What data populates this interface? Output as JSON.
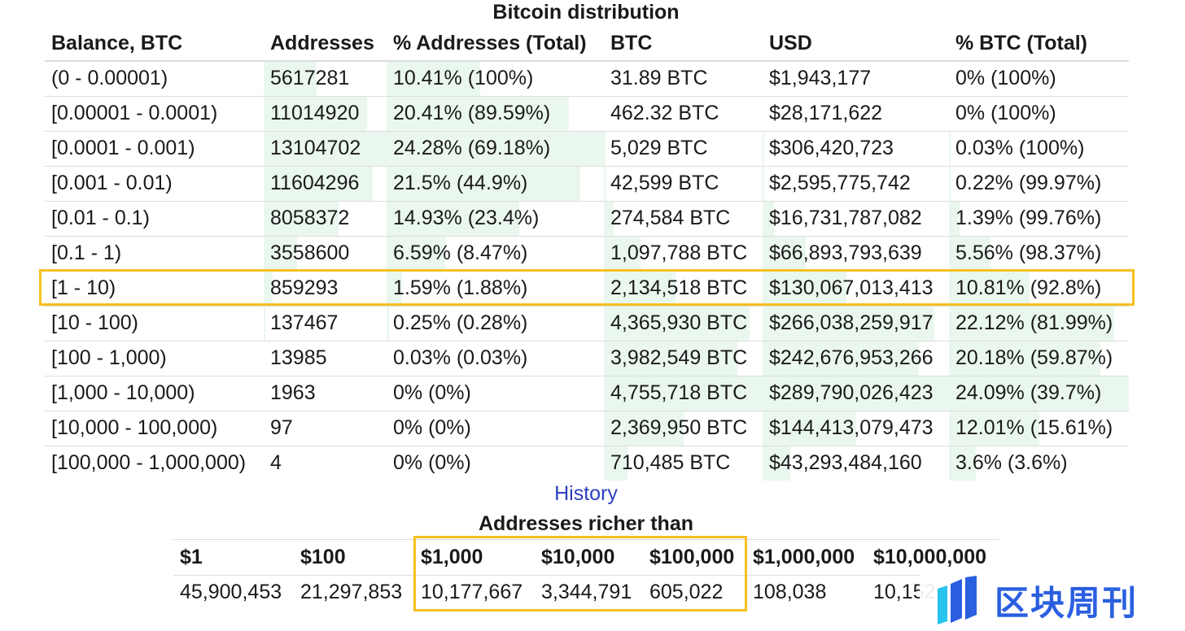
{
  "title": "Bitcoin distribution",
  "distribution": {
    "headers": [
      "Balance, BTC",
      "Addresses",
      "% Addresses (Total)",
      "BTC",
      "USD",
      "% BTC (Total)"
    ],
    "rows": [
      {
        "balance": "(0 - 0.00001)",
        "addresses": "5617281",
        "pct_addresses": "10.41% (100%)",
        "btc": "31.89 BTC",
        "usd": "$1,943,177",
        "pct_btc": "0% (100%)",
        "bar_addr": 43,
        "bar_pct_addr": 43,
        "bar_btc": 0,
        "bar_usd": 0,
        "bar_pct_btc": 0
      },
      {
        "balance": "[0.00001 - 0.0001)",
        "addresses": "11014920",
        "pct_addresses": "20.41% (89.59%)",
        "btc": "462.32 BTC",
        "usd": "$28,171,622",
        "pct_btc": "0% (100%)",
        "bar_addr": 84,
        "bar_pct_addr": 84,
        "bar_btc": 0,
        "bar_usd": 0,
        "bar_pct_btc": 0
      },
      {
        "balance": "[0.0001 - 0.001)",
        "addresses": "13104702",
        "pct_addresses": "24.28% (69.18%)",
        "btc": "5,029 BTC",
        "usd": "$306,420,723",
        "pct_btc": "0.03% (100%)",
        "bar_addr": 100,
        "bar_pct_addr": 100,
        "bar_btc": 1,
        "bar_usd": 1,
        "bar_pct_btc": 1
      },
      {
        "balance": "[0.001 - 0.01)",
        "addresses": "11604296",
        "pct_addresses": "21.5% (44.9%)",
        "btc": "42,599 BTC",
        "usd": "$2,595,775,742",
        "pct_btc": "0.22% (99.97%)",
        "bar_addr": 89,
        "bar_pct_addr": 89,
        "bar_btc": 1,
        "bar_usd": 1,
        "bar_pct_btc": 1
      },
      {
        "balance": "[0.01 - 0.1)",
        "addresses": "8058372",
        "pct_addresses": "14.93% (23.4%)",
        "btc": "274,584 BTC",
        "usd": "$16,731,787,082",
        "pct_btc": "1.39% (99.76%)",
        "bar_addr": 61,
        "bar_pct_addr": 61,
        "bar_btc": 6,
        "bar_usd": 6,
        "bar_pct_btc": 6
      },
      {
        "balance": "[0.1 - 1)",
        "addresses": "3558600",
        "pct_addresses": "6.59% (8.47%)",
        "btc": "1,097,788 BTC",
        "usd": "$66,893,793,639",
        "pct_btc": "5.56% (98.37%)",
        "bar_addr": 27,
        "bar_pct_addr": 27,
        "bar_btc": 23,
        "bar_usd": 23,
        "bar_pct_btc": 23
      },
      {
        "balance": "[1 - 10)",
        "addresses": "859293",
        "pct_addresses": "1.59% (1.88%)",
        "btc": "2,134,518 BTC",
        "usd": "$130,067,013,413",
        "pct_btc": "10.81% (92.8%)",
        "bar_addr": 7,
        "bar_pct_addr": 7,
        "bar_btc": 45,
        "bar_usd": 45,
        "bar_pct_btc": 45
      },
      {
        "balance": "[10 - 100)",
        "addresses": "137467",
        "pct_addresses": "0.25% (0.28%)",
        "btc": "4,365,930 BTC",
        "usd": "$266,038,259,917",
        "pct_btc": "22.12% (81.99%)",
        "bar_addr": 1,
        "bar_pct_addr": 1,
        "bar_btc": 92,
        "bar_usd": 92,
        "bar_pct_btc": 92
      },
      {
        "balance": "[100 - 1,000)",
        "addresses": "13985",
        "pct_addresses": "0.03% (0.03%)",
        "btc": "3,982,549 BTC",
        "usd": "$242,676,953,266",
        "pct_btc": "20.18% (59.87%)",
        "bar_addr": 0,
        "bar_pct_addr": 0,
        "bar_btc": 84,
        "bar_usd": 84,
        "bar_pct_btc": 84
      },
      {
        "balance": "[1,000 - 10,000)",
        "addresses": "1963",
        "pct_addresses": "0% (0%)",
        "btc": "4,755,718 BTC",
        "usd": "$289,790,026,423",
        "pct_btc": "24.09% (39.7%)",
        "bar_addr": 0,
        "bar_pct_addr": 0,
        "bar_btc": 100,
        "bar_usd": 100,
        "bar_pct_btc": 100
      },
      {
        "balance": "[10,000 - 100,000)",
        "addresses": "97",
        "pct_addresses": "0% (0%)",
        "btc": "2,369,950 BTC",
        "usd": "$144,413,079,473",
        "pct_btc": "12.01% (15.61%)",
        "bar_addr": 0,
        "bar_pct_addr": 0,
        "bar_btc": 50,
        "bar_usd": 50,
        "bar_pct_btc": 50
      },
      {
        "balance": "[100,000 - 1,000,000)",
        "addresses": "4",
        "pct_addresses": "0% (0%)",
        "btc": "710,485 BTC",
        "usd": "$43,293,484,160",
        "pct_btc": "3.6% (3.6%)",
        "bar_addr": 0,
        "bar_pct_addr": 0,
        "bar_btc": 15,
        "bar_usd": 15,
        "bar_pct_btc": 15
      }
    ],
    "highlighted_row": 6
  },
  "history_link": "History",
  "richer_than": {
    "title": "Addresses richer than",
    "headers": [
      "$1",
      "$100",
      "$1,000",
      "$10,000",
      "$100,000",
      "$1,000,000",
      "$10,000,000"
    ],
    "values": [
      "45,900,453",
      "21,297,853",
      "10,177,667",
      "3,344,791",
      "605,022",
      "108,038",
      "10,152"
    ],
    "highlighted_columns": [
      "$1,000",
      "$10,000",
      "$100,000"
    ]
  },
  "watermark": {
    "text": "区块周刊"
  },
  "colors": {
    "highlight": "#f5c020",
    "bar": "#eaf7ee",
    "link": "#2b3fbf"
  }
}
